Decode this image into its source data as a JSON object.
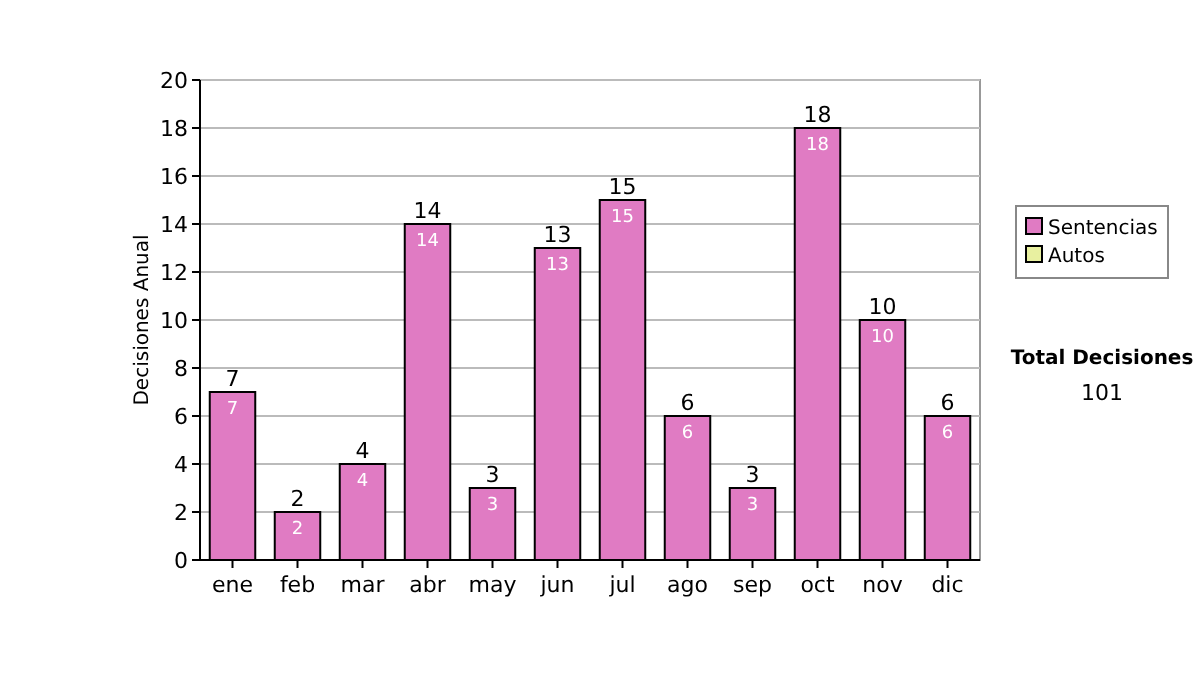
{
  "chart_data": {
    "type": "bar",
    "ylabel": "Decisiones Anual",
    "categories": [
      "ene",
      "feb",
      "mar",
      "abr",
      "may",
      "jun",
      "jul",
      "ago",
      "sep",
      "oct",
      "nov",
      "dic"
    ],
    "series": [
      {
        "name": "Sentencias",
        "color": "#e07bc3",
        "values": [
          7,
          2,
          4,
          14,
          3,
          13,
          15,
          6,
          3,
          18,
          10,
          6
        ],
        "value_labels": [
          "7",
          "2",
          "4",
          "14",
          "3",
          "13",
          "15",
          "6",
          "3",
          "18",
          "10",
          "6"
        ]
      },
      {
        "name": "Autos",
        "color": "#e8f0a0",
        "values": [
          0,
          0,
          0,
          0,
          0,
          0,
          0,
          0,
          0,
          0,
          0,
          0
        ]
      }
    ],
    "stacked": true,
    "totals": [
      "7",
      "2",
      "4",
      "14",
      "3",
      "13",
      "15",
      "6",
      "3",
      "18",
      "10",
      "6"
    ],
    "ylim": [
      0,
      20
    ],
    "yticks": [
      0,
      2,
      4,
      6,
      8,
      10,
      12,
      14,
      16,
      18,
      20
    ],
    "grid": "y",
    "legend": "right",
    "annotations": [
      "Total Decisiones",
      "101"
    ]
  }
}
